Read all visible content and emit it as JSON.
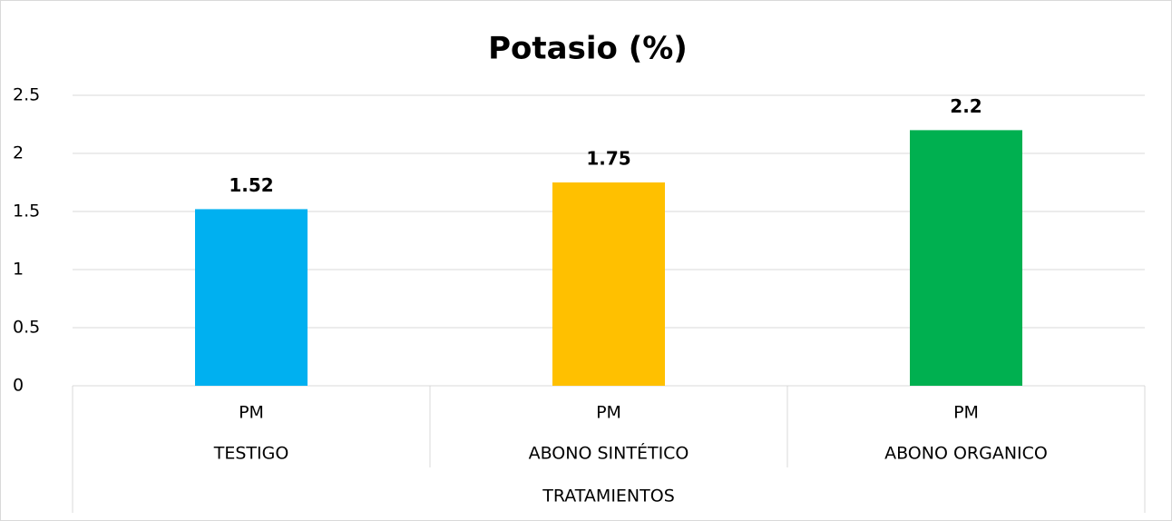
{
  "chart_data": {
    "type": "bar",
    "title": "Potasio (%)",
    "categories": [
      "PM",
      "PM",
      "PM"
    ],
    "groups": [
      "TESTIGO",
      "ABONO SINTÉTICO",
      "ABONO ORGANICO"
    ],
    "xlabel": "TRATAMIENTOS",
    "values": [
      1.52,
      1.75,
      2.2
    ],
    "colors": [
      "#00b0f0",
      "#ffc000",
      "#00b050"
    ],
    "ylim": [
      0,
      2.5
    ],
    "yticks": [
      0,
      0.5,
      1,
      1.5,
      2,
      2.5
    ],
    "grid": true
  }
}
